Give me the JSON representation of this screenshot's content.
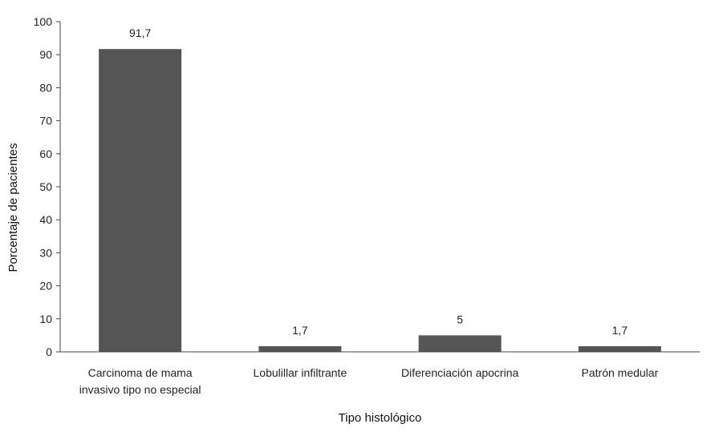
{
  "chart_data": {
    "type": "bar",
    "categories": [
      [
        "Carcinoma de mama",
        "invasivo tipo no especial"
      ],
      [
        "Lobulillar infiltrante"
      ],
      [
        "Diferenciación apocrina"
      ],
      [
        "Patrón medular"
      ]
    ],
    "values": [
      91.7,
      1.7,
      5,
      1.7
    ],
    "value_labels": [
      "91,7",
      "1,7",
      "5",
      "1,7"
    ],
    "xlabel": "Tipo histológico",
    "ylabel": "Porcentaje de pacientes",
    "ylim": [
      0,
      100
    ],
    "yticks": [
      0,
      10,
      20,
      30,
      40,
      50,
      60,
      70,
      80,
      90,
      100
    ],
    "grid": false,
    "bar_color": "#555555",
    "axis_color": "#444444"
  }
}
